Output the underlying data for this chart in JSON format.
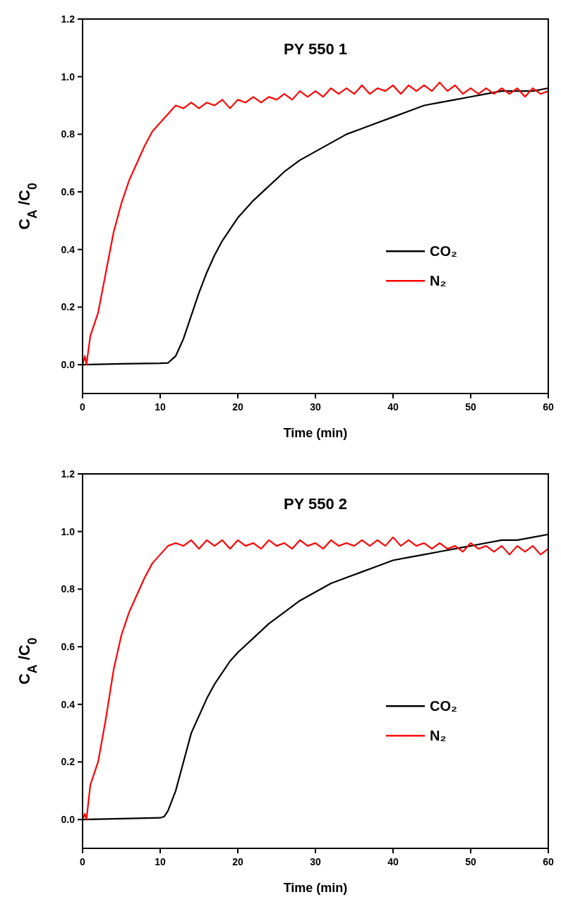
{
  "chart_data": [
    {
      "type": "line",
      "title": "PY 550 1",
      "xlabel": "Time (min)",
      "ylabel": "C$_{A}$ /C$_{0}$",
      "xlim": [
        0,
        60
      ],
      "xticks": [
        0,
        10,
        20,
        30,
        40,
        50,
        60
      ],
      "ylim": [
        -0.1,
        1.2
      ],
      "yticks": [
        {
          "value": 0,
          "label": "0.0"
        },
        {
          "value": 0.2,
          "label": "0.2"
        },
        {
          "value": 0.4,
          "label": "0.4"
        },
        {
          "value": 0.6,
          "label": "0.6"
        },
        {
          "value": 0.8,
          "label": "0.8"
        },
        {
          "value": 1,
          "label": "1.0"
        },
        {
          "value": 1.2,
          "label": "1.2"
        }
      ],
      "legend": "right",
      "grid": false,
      "marker": "none",
      "line_style": "solid",
      "series": [
        {
          "name": "CO₂",
          "color": "#000000",
          "x": [
            0,
            5,
            10,
            11,
            12,
            13,
            14,
            15,
            16,
            17,
            18,
            19,
            20,
            22,
            24,
            26,
            28,
            30,
            32,
            34,
            36,
            38,
            40,
            42,
            44,
            46,
            48,
            50,
            52,
            54,
            56,
            58,
            60
          ],
          "values": [
            0,
            0.003,
            0.005,
            0.006,
            0.03,
            0.09,
            0.17,
            0.25,
            0.32,
            0.38,
            0.43,
            0.47,
            0.51,
            0.57,
            0.62,
            0.67,
            0.71,
            0.74,
            0.77,
            0.8,
            0.82,
            0.84,
            0.86,
            0.88,
            0.9,
            0.91,
            0.92,
            0.93,
            0.94,
            0.95,
            0.95,
            0.95,
            0.96
          ]
        },
        {
          "name": "N₂",
          "color": "#ff0000",
          "x": [
            0,
            0.3,
            0.5,
            1,
            2,
            3,
            4,
            5,
            6,
            7,
            8,
            9,
            10,
            11,
            12,
            13,
            14,
            15,
            16,
            17,
            18,
            19,
            20,
            21,
            22,
            23,
            24,
            25,
            26,
            27,
            28,
            29,
            30,
            31,
            32,
            33,
            34,
            35,
            36,
            37,
            38,
            39,
            40,
            41,
            42,
            43,
            44,
            45,
            46,
            47,
            48,
            49,
            50,
            51,
            52,
            53,
            54,
            55,
            56,
            57,
            58,
            59,
            60
          ],
          "values": [
            0,
            0.03,
            0,
            0.1,
            0.18,
            0.32,
            0.46,
            0.56,
            0.64,
            0.7,
            0.76,
            0.81,
            0.84,
            0.87,
            0.9,
            0.89,
            0.91,
            0.89,
            0.91,
            0.9,
            0.92,
            0.89,
            0.92,
            0.91,
            0.93,
            0.91,
            0.93,
            0.92,
            0.94,
            0.92,
            0.95,
            0.93,
            0.95,
            0.93,
            0.96,
            0.94,
            0.96,
            0.94,
            0.97,
            0.94,
            0.96,
            0.95,
            0.97,
            0.94,
            0.97,
            0.95,
            0.97,
            0.95,
            0.98,
            0.95,
            0.97,
            0.94,
            0.96,
            0.94,
            0.96,
            0.94,
            0.96,
            0.94,
            0.96,
            0.93,
            0.96,
            0.94,
            0.95
          ]
        }
      ]
    },
    {
      "type": "line",
      "title": "PY 550 2",
      "xlabel": "Time (min)",
      "ylabel": "C$_{A}$ /C$_{0}$",
      "xlim": [
        0,
        60
      ],
      "xticks": [
        0,
        10,
        20,
        30,
        40,
        50,
        60
      ],
      "ylim": [
        -0.1,
        1.2
      ],
      "yticks": [
        {
          "value": 0,
          "label": "0.0"
        },
        {
          "value": 0.2,
          "label": "0.2"
        },
        {
          "value": 0.4,
          "label": "0.4"
        },
        {
          "value": 0.6,
          "label": "0.6"
        },
        {
          "value": 0.8,
          "label": "0.8"
        },
        {
          "value": 1,
          "label": "1.0"
        },
        {
          "value": 1.2,
          "label": "1.2"
        }
      ],
      "legend": "right",
      "grid": false,
      "marker": "none",
      "line_style": "solid",
      "series": [
        {
          "name": "CO₂",
          "color": "#000000",
          "x": [
            0,
            5,
            10,
            10.5,
            11,
            12,
            13,
            14,
            15,
            16,
            17,
            18,
            19,
            20,
            22,
            24,
            26,
            28,
            30,
            32,
            34,
            36,
            38,
            40,
            42,
            44,
            46,
            48,
            50,
            52,
            54,
            56,
            58,
            60
          ],
          "values": [
            0,
            0.003,
            0.006,
            0.01,
            0.03,
            0.1,
            0.2,
            0.3,
            0.36,
            0.42,
            0.47,
            0.51,
            0.55,
            0.58,
            0.63,
            0.68,
            0.72,
            0.76,
            0.79,
            0.82,
            0.84,
            0.86,
            0.88,
            0.9,
            0.91,
            0.92,
            0.93,
            0.94,
            0.95,
            0.96,
            0.97,
            0.97,
            0.98,
            0.99
          ]
        },
        {
          "name": "N₂",
          "color": "#ff0000",
          "x": [
            0,
            0.3,
            0.5,
            1,
            2,
            3,
            4,
            5,
            6,
            7,
            8,
            9,
            10,
            11,
            12,
            13,
            14,
            15,
            16,
            17,
            18,
            19,
            20,
            21,
            22,
            23,
            24,
            25,
            26,
            27,
            28,
            29,
            30,
            31,
            32,
            33,
            34,
            35,
            36,
            37,
            38,
            39,
            40,
            41,
            42,
            43,
            44,
            45,
            46,
            47,
            48,
            49,
            50,
            51,
            52,
            53,
            54,
            55,
            56,
            57,
            58,
            59,
            60
          ],
          "values": [
            0,
            0.02,
            0,
            0.12,
            0.2,
            0.35,
            0.52,
            0.64,
            0.72,
            0.78,
            0.84,
            0.89,
            0.92,
            0.95,
            0.96,
            0.95,
            0.97,
            0.94,
            0.97,
            0.95,
            0.97,
            0.94,
            0.97,
            0.95,
            0.96,
            0.94,
            0.97,
            0.95,
            0.96,
            0.94,
            0.97,
            0.95,
            0.96,
            0.94,
            0.97,
            0.95,
            0.96,
            0.95,
            0.97,
            0.95,
            0.97,
            0.95,
            0.98,
            0.95,
            0.97,
            0.95,
            0.96,
            0.94,
            0.96,
            0.94,
            0.95,
            0.93,
            0.96,
            0.94,
            0.95,
            0.93,
            0.95,
            0.92,
            0.95,
            0.93,
            0.95,
            0.92,
            0.94
          ]
        }
      ]
    }
  ]
}
